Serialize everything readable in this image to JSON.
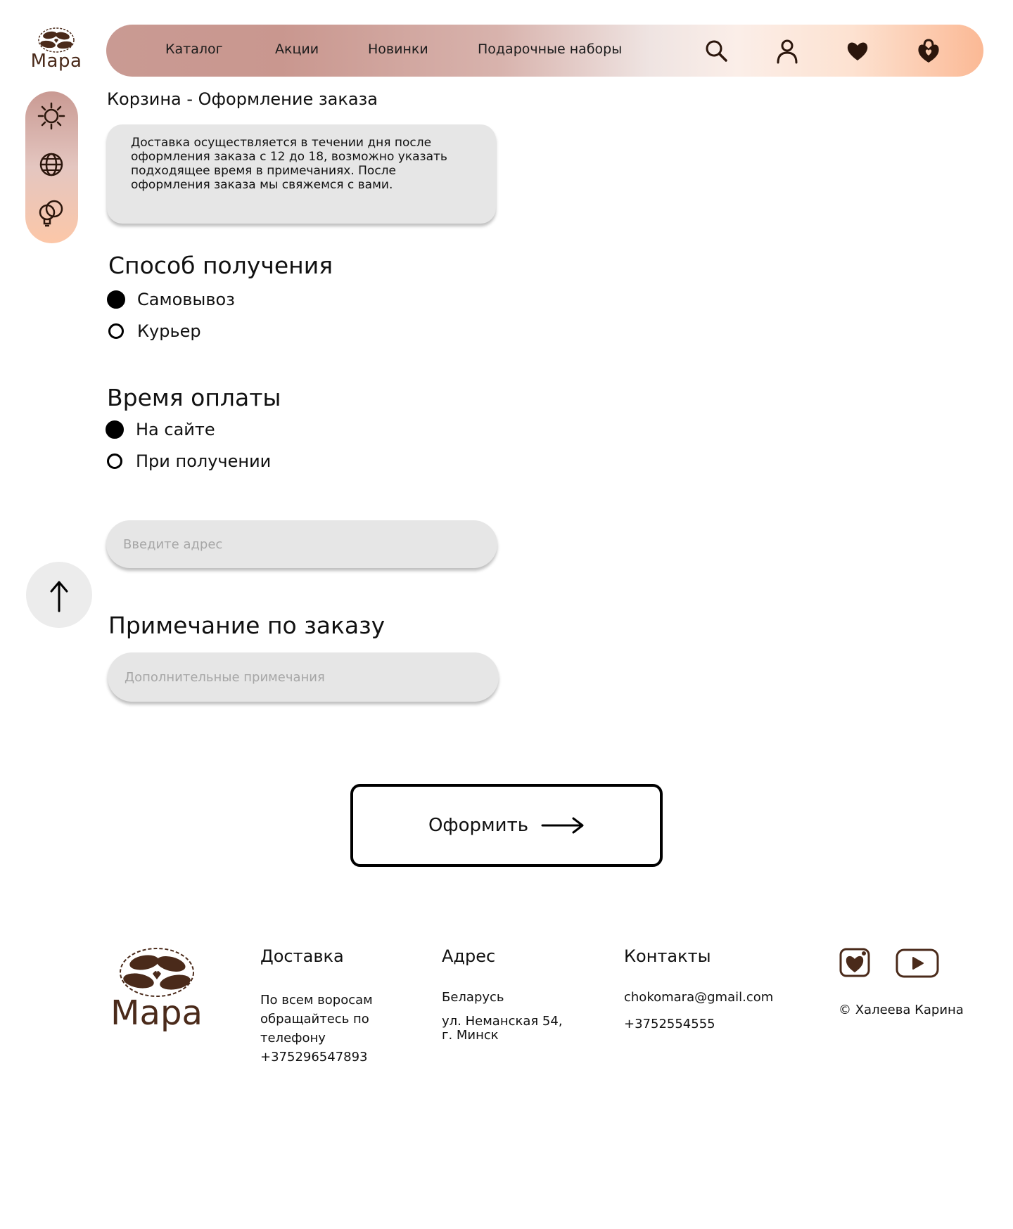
{
  "brand": {
    "name": "Мара"
  },
  "nav": {
    "links": [
      "Каталог",
      "Акции",
      "Новинки",
      "Подарочные наборы"
    ],
    "icons": [
      "search-icon",
      "user-icon",
      "heart-icon",
      "cart-icon"
    ]
  },
  "sidebar": {
    "icons": [
      "theme-sun-icon",
      "language-globe-icon",
      "tips-bulb-icon"
    ]
  },
  "page": {
    "breadcrumb": "Корзина - Оформление заказа",
    "info": "Доставка осуществляется в течении дня после оформления заказа с 12 до 18, возможно указать подходящее время в примечаниях. После оформления заказа мы свяжемся с вами."
  },
  "delivery": {
    "title": "Способ получения",
    "options": [
      {
        "label": "Самовывоз",
        "selected": true
      },
      {
        "label": "Курьер",
        "selected": false
      }
    ]
  },
  "payment": {
    "title": "Время оплаты",
    "options": [
      {
        "label": "На сайте",
        "selected": true
      },
      {
        "label": "При получении",
        "selected": false
      }
    ]
  },
  "address": {
    "placeholder": "Введите адрес",
    "value": ""
  },
  "notes": {
    "title": "Примечание по заказу",
    "placeholder": "Дополнительные примечания",
    "value": ""
  },
  "submit": {
    "label": "Оформить"
  },
  "footer": {
    "delivery": {
      "title": "Доставка",
      "lines": [
        "По всем воросам",
        "обращайтесь по",
        "телефону",
        "+375296547893"
      ]
    },
    "address": {
      "title": "Адрес",
      "country": "Беларусь",
      "street": "ул. Неманская 54,",
      "city": "г. Минск"
    },
    "contacts": {
      "title": "Контакты",
      "email": "chokomara@gmail.com",
      "phone": "+3752554555"
    },
    "social": [
      "vk-icon",
      "youtube-icon"
    ],
    "copyright": "© Халеева Карина"
  }
}
